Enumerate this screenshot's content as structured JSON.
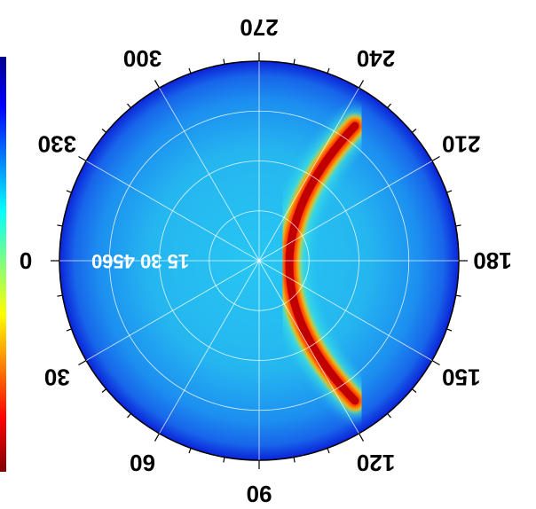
{
  "chart_data": {
    "type": "heatmap",
    "projection": "polar",
    "orientation": "rotated 180 degrees",
    "colormap": "jet",
    "grid": true,
    "angular_ticks": [
      "0",
      "30",
      "60",
      "90",
      "120",
      "150",
      "180",
      "210",
      "240",
      "270",
      "300",
      "330"
    ],
    "radial_tick_text": "15  30  4560",
    "colorbar": {
      "position": "left",
      "labels": []
    },
    "feature": {
      "description_kind": "arc",
      "angle_range_deg": [
        120,
        240
      ],
      "peak_value": "max"
    },
    "colors": {
      "background_field": "#22b8f0",
      "outer_ring": "#0a1fd8",
      "arc_core": "#c80000",
      "arc_edge": "#ffd000",
      "grid": "#ffffff"
    }
  }
}
